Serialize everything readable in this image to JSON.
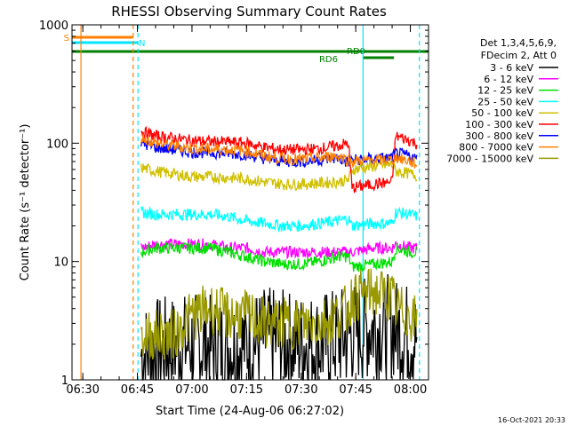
{
  "chart_data": {
    "type": "line",
    "title": "RHESSI Observing Summary Count Rates",
    "xlabel": "Start Time (24-Aug-06 06:27:02)",
    "ylabel": "Count Rate (s⁻¹ detector⁻¹)",
    "yscale": "log",
    "ylim": [
      1,
      1000
    ],
    "xlim": [
      "06:27:02",
      "08:05:00"
    ],
    "x_ticks": [
      "06:30",
      "06:45",
      "07:00",
      "07:15",
      "07:30",
      "07:45",
      "08:00"
    ],
    "y_ticks": [
      "1",
      "10",
      "100",
      "1000"
    ],
    "legend_header": [
      "Det 1,3,4,5,6,9,",
      "FDecim 2, Att 0"
    ],
    "legend_position": "right",
    "timestamp": "16-Oct-2021 20:33",
    "flags": [
      {
        "label": "S",
        "color": "#ff8000"
      },
      {
        "label": "N",
        "color": "#00e5ff"
      },
      {
        "label": "RD0",
        "color": "#008000"
      },
      {
        "label": "RD6",
        "color": "#008000"
      }
    ],
    "vertical_markers": [
      {
        "time": "06:29:30",
        "color": "#ff8000",
        "style": "solid"
      },
      {
        "time": "06:43:50",
        "color": "#ff8000",
        "style": "dashed"
      },
      {
        "time": "06:45:10",
        "color": "#00e5ff",
        "style": "dashed"
      },
      {
        "time": "07:47:00",
        "color": "#00e5ff",
        "style": "solid"
      },
      {
        "time": "08:02:30",
        "color": "#00e5ff",
        "style": "dashed"
      }
    ],
    "x": [
      "06:46",
      "06:50",
      "06:55",
      "07:00",
      "07:05",
      "07:10",
      "07:15",
      "07:20",
      "07:25",
      "07:30",
      "07:35",
      "07:40",
      "07:43",
      "07:44",
      "07:50",
      "07:55",
      "07:56",
      "08:00",
      "08:02"
    ],
    "series": [
      {
        "name": "3 - 6 keV",
        "color": "#000000",
        "values": [
          1.6,
          1.8,
          1.9,
          2.0,
          1.9,
          1.9,
          2.0,
          2.2,
          2.1,
          2.0,
          2.0,
          2.2,
          2.3,
          2.5,
          2.8,
          2.8,
          2.6,
          2.4,
          2.2
        ]
      },
      {
        "name": "6 - 12 keV",
        "color": "#ff00ff",
        "values": [
          13,
          14,
          14,
          14,
          14,
          13,
          13,
          12,
          12,
          12,
          12,
          12,
          12,
          12,
          13,
          13,
          14,
          13,
          13
        ]
      },
      {
        "name": "12 - 25 keV",
        "color": "#00e000",
        "values": [
          12,
          13,
          13,
          13,
          13,
          12,
          11,
          10,
          9.5,
          9.5,
          10,
          11,
          11,
          9,
          9.5,
          10,
          13,
          12,
          12
        ]
      },
      {
        "name": "25 - 50 keV",
        "color": "#00ffff",
        "values": [
          26,
          25,
          25,
          25,
          25,
          24,
          22,
          21,
          20,
          20,
          21,
          22,
          23,
          20,
          21,
          21,
          26,
          25,
          24
        ]
      },
      {
        "name": "50 - 100 keV",
        "color": "#d0c000",
        "values": [
          62,
          58,
          55,
          52,
          52,
          51,
          50,
          47,
          45,
          45,
          46,
          47,
          49,
          60,
          64,
          66,
          58,
          55,
          53
        ]
      },
      {
        "name": "100 - 300 keV",
        "color": "#ff0000",
        "values": [
          125,
          115,
          110,
          105,
          103,
          102,
          100,
          92,
          88,
          88,
          90,
          95,
          100,
          42,
          45,
          47,
          115,
          105,
          98
        ]
      },
      {
        "name": "300 - 800 keV",
        "color": "#0000ff",
        "values": [
          100,
          92,
          88,
          84,
          83,
          82,
          80,
          74,
          70,
          70,
          72,
          75,
          68,
          72,
          74,
          75,
          82,
          78,
          73
        ]
      },
      {
        "name": "800 - 7000 keV",
        "color": "#ff8000",
        "values": [
          112,
          100,
          95,
          90,
          89,
          88,
          86,
          78,
          74,
          73,
          75,
          79,
          71,
          70,
          72,
          72,
          76,
          70,
          66
        ]
      },
      {
        "name": "7000 - 15000 keV",
        "color": "#999900",
        "values": [
          2.3,
          2.4,
          2.4,
          3.5,
          4.0,
          3.5,
          3.5,
          3.0,
          3.0,
          3.0,
          3.0,
          3.5,
          4.0,
          5.0,
          5.5,
          5.0,
          4.0,
          3.5,
          3.0
        ]
      }
    ]
  }
}
